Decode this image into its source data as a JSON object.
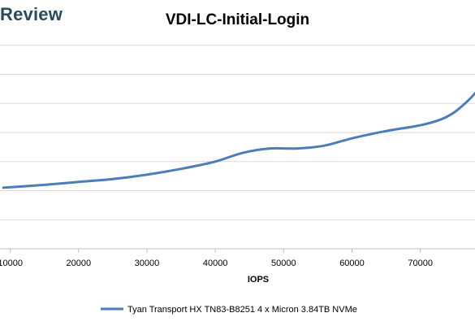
{
  "brand": "Review",
  "chart_data": {
    "type": "line",
    "title": "VDI-LC-Initial-Login",
    "xlabel": "IOPS",
    "ylabel": "",
    "xlim": [
      8500,
      78000
    ],
    "ylim": [
      0,
      8
    ],
    "grid": true,
    "legend_placement": "bottom",
    "x_ticks": [
      10000,
      20000,
      30000,
      40000,
      50000,
      60000,
      70000
    ],
    "x_tick_labels": [
      "10000",
      "20000",
      "30000",
      "40000",
      "50000",
      "60000",
      "70000"
    ],
    "y_gridlines": [
      1,
      2,
      3,
      4,
      5,
      6,
      7
    ],
    "series": [
      {
        "name": "Tyan Transport HX TN83-B8251 4 x Micron 3.84TB NVMe",
        "color": "#4a7ebb",
        "x": [
          9000,
          15000,
          20000,
          25000,
          30000,
          35000,
          40000,
          44000,
          48000,
          52000,
          56000,
          60000,
          65000,
          70000,
          73000,
          75000,
          77000,
          78000
        ],
        "y": [
          2.1,
          2.2,
          2.3,
          2.4,
          2.55,
          2.75,
          3.0,
          3.3,
          3.45,
          3.45,
          3.55,
          3.8,
          4.05,
          4.25,
          4.45,
          4.7,
          5.1,
          5.35
        ]
      }
    ]
  }
}
